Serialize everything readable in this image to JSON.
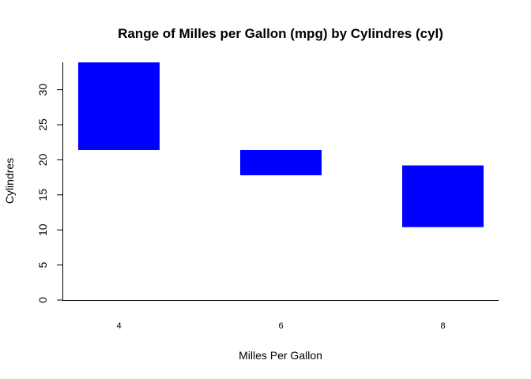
{
  "chart_data": {
    "type": "bar",
    "title": "Range of Milles per Gallon (mpg) by Cylindres (cyl)",
    "xlabel": "Milles Per Gallon",
    "ylabel": "Cylindres",
    "categories": [
      "4",
      "6",
      "8"
    ],
    "series": [
      {
        "ranges": [
          [
            21.4,
            33.9
          ],
          [
            17.8,
            21.4
          ],
          [
            10.4,
            19.2
          ]
        ]
      }
    ],
    "ylim": [
      0,
      33.9
    ],
    "yticks": [
      0,
      5,
      10,
      15,
      20,
      25,
      30
    ],
    "grid": false,
    "colors": {
      "bar": "#0000ff",
      "axis": "#000000",
      "background": "#ffffff"
    }
  }
}
